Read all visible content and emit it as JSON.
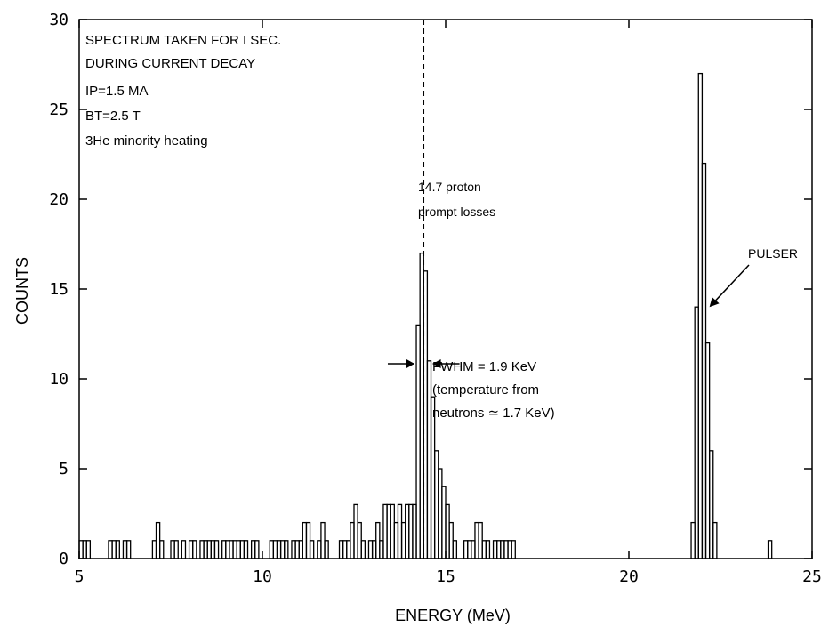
{
  "chart_data": {
    "type": "histogram",
    "title": "",
    "xlabel": "ENERGY (MeV)",
    "ylabel": "COUNTS",
    "xlim": [
      5,
      25
    ],
    "ylim": [
      0,
      30
    ],
    "x_ticks": [
      "5",
      "10",
      "15",
      "20",
      "25"
    ],
    "y_ticks": [
      "0",
      "5",
      "10",
      "15",
      "20",
      "25",
      "30"
    ],
    "grid": false,
    "legend": "none",
    "bin_width": 0.1,
    "series": [
      {
        "bins": [
          [
            5.0,
            1
          ],
          [
            5.1,
            1
          ],
          [
            5.2,
            1
          ],
          [
            5.8,
            1
          ],
          [
            5.9,
            1
          ],
          [
            6.0,
            1
          ],
          [
            6.2,
            1
          ],
          [
            6.3,
            1
          ],
          [
            7.0,
            1
          ],
          [
            7.1,
            2
          ],
          [
            7.2,
            1
          ],
          [
            7.5,
            1
          ],
          [
            7.6,
            1
          ],
          [
            7.8,
            1
          ],
          [
            8.0,
            1
          ],
          [
            8.1,
            1
          ],
          [
            8.3,
            1
          ],
          [
            8.4,
            1
          ],
          [
            8.5,
            1
          ],
          [
            8.6,
            1
          ],
          [
            8.7,
            1
          ],
          [
            8.9,
            1
          ],
          [
            9.0,
            1
          ],
          [
            9.1,
            1
          ],
          [
            9.2,
            1
          ],
          [
            9.3,
            1
          ],
          [
            9.4,
            1
          ],
          [
            9.5,
            1
          ],
          [
            9.7,
            1
          ],
          [
            9.8,
            1
          ],
          [
            10.2,
            1
          ],
          [
            10.3,
            1
          ],
          [
            10.4,
            1
          ],
          [
            10.5,
            1
          ],
          [
            10.6,
            1
          ],
          [
            10.8,
            1
          ],
          [
            10.9,
            1
          ],
          [
            11.0,
            1
          ],
          [
            11.1,
            2
          ],
          [
            11.2,
            2
          ],
          [
            11.3,
            1
          ],
          [
            11.5,
            1
          ],
          [
            11.6,
            2
          ],
          [
            11.7,
            1
          ],
          [
            12.1,
            1
          ],
          [
            12.2,
            1
          ],
          [
            12.3,
            1
          ],
          [
            12.4,
            2
          ],
          [
            12.5,
            3
          ],
          [
            12.6,
            2
          ],
          [
            12.7,
            1
          ],
          [
            12.9,
            1
          ],
          [
            13.0,
            1
          ],
          [
            13.1,
            2
          ],
          [
            13.2,
            1
          ],
          [
            13.3,
            3
          ],
          [
            13.4,
            3
          ],
          [
            13.5,
            3
          ],
          [
            13.6,
            2
          ],
          [
            13.7,
            3
          ],
          [
            13.8,
            2
          ],
          [
            13.9,
            3
          ],
          [
            14.0,
            3
          ],
          [
            14.1,
            3
          ],
          [
            14.2,
            13
          ],
          [
            14.3,
            17
          ],
          [
            14.4,
            16
          ],
          [
            14.5,
            11
          ],
          [
            14.6,
            9
          ],
          [
            14.7,
            6
          ],
          [
            14.8,
            5
          ],
          [
            14.9,
            4
          ],
          [
            15.0,
            3
          ],
          [
            15.1,
            2
          ],
          [
            15.2,
            1
          ],
          [
            15.5,
            1
          ],
          [
            15.6,
            1
          ],
          [
            15.7,
            1
          ],
          [
            15.8,
            2
          ],
          [
            15.9,
            2
          ],
          [
            16.0,
            1
          ],
          [
            16.1,
            1
          ],
          [
            16.3,
            1
          ],
          [
            16.4,
            1
          ],
          [
            16.5,
            1
          ],
          [
            16.6,
            1
          ],
          [
            16.7,
            1
          ],
          [
            16.8,
            1
          ],
          [
            21.7,
            2
          ],
          [
            21.8,
            14
          ],
          [
            21.9,
            27
          ],
          [
            22.0,
            22
          ],
          [
            22.1,
            12
          ],
          [
            22.2,
            6
          ],
          [
            22.3,
            2
          ],
          [
            23.8,
            1
          ]
        ]
      }
    ],
    "annotations": [
      {
        "id": "spectrum",
        "text": "SPECTRUM TAKEN FOR I SEC."
      },
      {
        "id": "decay",
        "text": "DURING CURRENT DECAY"
      },
      {
        "id": "ip",
        "text": "IP=1.5 MA"
      },
      {
        "id": "bt",
        "text": "BT=2.5 T"
      },
      {
        "id": "he",
        "text": "3He minority heating"
      },
      {
        "id": "proton",
        "text": "14.7 proton"
      },
      {
        "id": "prompt",
        "text": "prompt losses"
      },
      {
        "id": "fwhm",
        "text": "FWHM = 1.9 KeV"
      },
      {
        "id": "temp",
        "text": "(temperature from"
      },
      {
        "id": "neutrons",
        "text": "neutrons ≃ 1.7 KeV)"
      },
      {
        "id": "pulser",
        "text": "PULSER"
      }
    ],
    "dashed_line_x": 14.4,
    "fwhm_arrows": [
      14.15,
      14.65
    ],
    "pulser_arrow": {
      "x": 22.2,
      "y": 14
    }
  }
}
